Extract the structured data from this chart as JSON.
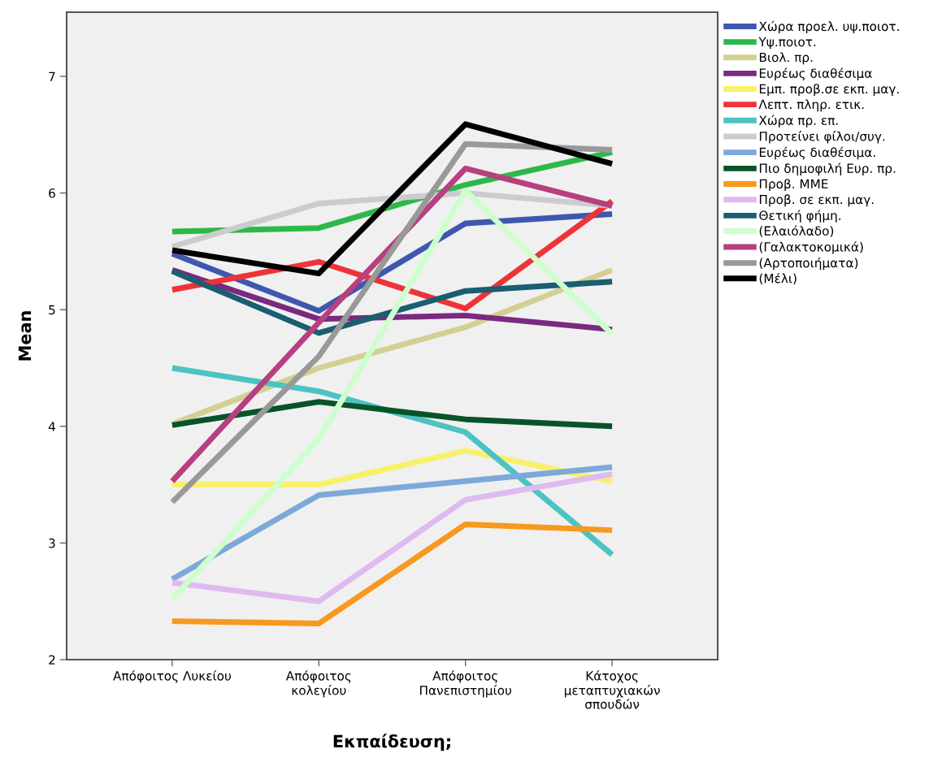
{
  "chart_data": {
    "type": "line",
    "xlabel": "Εκπαίδευση;",
    "ylabel": "Mean",
    "categories": [
      "Απόφοιτος Λυκείου",
      "Απόφοιτος\nκολεγίου",
      "Απόφοιτος\nΠανεπιστημίου",
      "Κάτοχος\nμεταπτυχιακών\nσπουδών"
    ],
    "ylim": [
      2,
      7.55
    ],
    "yticks": [
      2,
      3,
      4,
      5,
      6,
      7
    ],
    "grid": false,
    "legend": "right",
    "marker": "none",
    "line_style": "solid",
    "series": [
      {
        "name": "Χώρα προελ. υψ.ποιοτ.",
        "color": "#3f57b0",
        "values": [
          5.48,
          4.99,
          5.74,
          5.82
        ]
      },
      {
        "name": "Υψ.ποιοτ.",
        "color": "#2db84a",
        "values": [
          5.67,
          5.7,
          6.07,
          6.35
        ]
      },
      {
        "name": "Βιολ. πρ.",
        "color": "#d4cf92",
        "values": [
          4.02,
          4.5,
          4.85,
          5.34
        ]
      },
      {
        "name": "Ευρέως διαθέσιμα",
        "color": "#7a2a80",
        "values": [
          5.34,
          4.92,
          4.95,
          4.83
        ]
      },
      {
        "name": "Εμπ. προβ.σε εκπ. μαγ.",
        "color": "#f8f06a",
        "values": [
          3.5,
          3.5,
          3.79,
          3.53
        ]
      },
      {
        "name": "Λεπτ. πληρ. ετικ.",
        "color": "#ee3338",
        "values": [
          5.17,
          5.41,
          5.01,
          5.93
        ]
      },
      {
        "name": "Χώρα πρ. επ.",
        "color": "#4cc3c3",
        "values": [
          4.5,
          4.3,
          3.95,
          2.9
        ]
      },
      {
        "name": "Προτείνει φίλοι/συγ.",
        "color": "#cccccc",
        "values": [
          5.54,
          5.91,
          6.0,
          5.89
        ]
      },
      {
        "name": "Ευρέως διαθέσιμα.",
        "color": "#7da9d9",
        "values": [
          2.69,
          3.41,
          3.53,
          3.65
        ]
      },
      {
        "name": "Πιο δημοφιλή Ευρ. πρ.",
        "color": "#075428",
        "values": [
          4.01,
          4.21,
          4.06,
          4.0
        ]
      },
      {
        "name": "Προβ. ΜΜΕ",
        "color": "#f7991f",
        "values": [
          2.33,
          2.31,
          3.16,
          3.11
        ]
      },
      {
        "name": "Προβ. σε εκπ. μαγ.",
        "color": "#dfbaf0",
        "values": [
          2.66,
          2.5,
          3.37,
          3.59
        ]
      },
      {
        "name": "Θετική φήμη.",
        "color": "#1a5e70",
        "values": [
          5.33,
          4.8,
          5.16,
          5.24
        ]
      },
      {
        "name": "(Ελαιόλαδο)",
        "color": "#ccffcc",
        "values": [
          2.52,
          3.89,
          6.02,
          4.79
        ]
      },
      {
        "name": "(Γαλακτοκομικά)",
        "color": "#b8407f",
        "values": [
          3.53,
          4.89,
          6.21,
          5.89
        ]
      },
      {
        "name": "(Αρτοποιήματα)",
        "color": "#999999",
        "values": [
          3.35,
          4.6,
          6.42,
          6.37
        ]
      },
      {
        "name": "(Μέλι)",
        "color": "#000000",
        "values": [
          5.51,
          5.31,
          6.59,
          6.25
        ]
      }
    ]
  }
}
